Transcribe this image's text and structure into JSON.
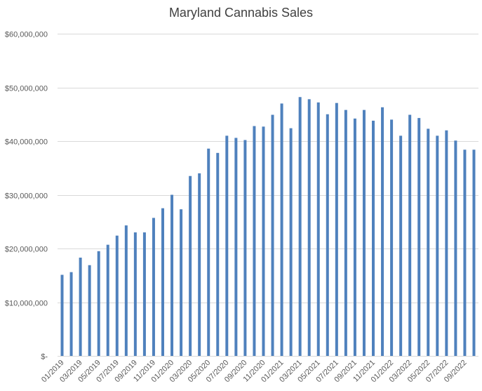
{
  "chart_data": {
    "type": "bar",
    "title": "Maryland Cannabis Sales",
    "xlabel": "",
    "ylabel": "",
    "ylim": [
      0,
      60000000
    ],
    "grid": true,
    "legend": "none",
    "bar_color": "#4f81bd",
    "y_ticks": [
      {
        "value": 0,
        "label": "$-"
      },
      {
        "value": 10000000,
        "label": "$10,000,000"
      },
      {
        "value": 20000000,
        "label": "$20,000,000"
      },
      {
        "value": 30000000,
        "label": "$30,000,000"
      },
      {
        "value": 40000000,
        "label": "$40,000,000"
      },
      {
        "value": 50000000,
        "label": "$50,000,000"
      },
      {
        "value": 60000000,
        "label": "$60,000,000"
      }
    ],
    "categories": [
      "01/2019",
      "02/2019",
      "03/2019",
      "04/2019",
      "05/2019",
      "06/2019",
      "07/2019",
      "08/2019",
      "09/2019",
      "10/2019",
      "11/2019",
      "12/2019",
      "01/2020",
      "02/2020",
      "03/2020",
      "04/2020",
      "05/2020",
      "06/2020",
      "07/2020",
      "08/2020",
      "09/2020",
      "10/2020",
      "11/2020",
      "12/2020",
      "01/2021",
      "02/2021",
      "03/2021",
      "04/2021",
      "05/2021",
      "06/2021",
      "07/2021",
      "08/2021",
      "09/2021",
      "10/2021",
      "11/2021",
      "12/2021",
      "01/2022",
      "02/2022",
      "03/2022",
      "04/2022",
      "05/2022",
      "06/2022",
      "07/2022",
      "08/2022",
      "09/2022",
      "10/2022"
    ],
    "tick_labels": [
      "01/2019",
      "03/2019",
      "05/2019",
      "07/2019",
      "09/2019",
      "11/2019",
      "01/2020",
      "03/2020",
      "05/2020",
      "07/2020",
      "09/2020",
      "11/2020",
      "01/2021",
      "03/2021",
      "05/2021",
      "07/2021",
      "09/2021",
      "11/2021",
      "01/2022",
      "03/2022",
      "05/2022",
      "07/2022",
      "09/2022"
    ],
    "values": [
      15100000,
      15600000,
      18300000,
      16900000,
      19500000,
      20700000,
      22400000,
      24300000,
      23000000,
      23000000,
      25700000,
      27500000,
      30000000,
      27300000,
      33500000,
      34000000,
      38600000,
      37800000,
      41000000,
      40600000,
      40200000,
      42800000,
      42700000,
      44900000,
      47000000,
      42400000,
      48200000,
      47800000,
      47200000,
      45000000,
      47100000,
      45800000,
      44200000,
      45800000,
      43800000,
      46300000,
      44000000,
      41000000,
      44900000,
      44300000,
      42300000,
      41000000,
      42000000,
      40100000,
      38400000,
      38400000
    ]
  }
}
